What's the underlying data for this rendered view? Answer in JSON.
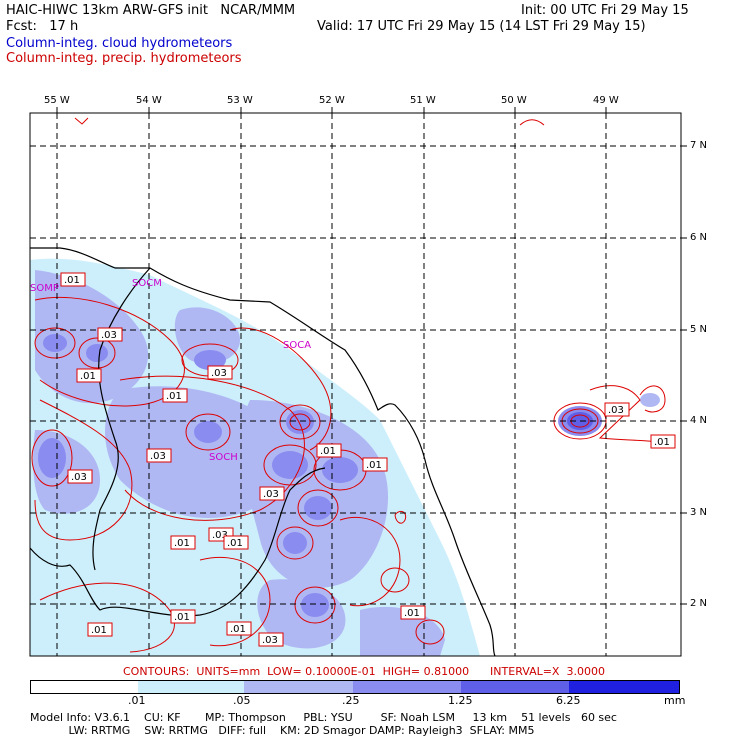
{
  "header": {
    "title": "HAIC-HIWC 13km ARW-GFS init   NCAR/MMM",
    "init": "Init: 00 UTC Fri 29 May 15",
    "fcst": "Fcst:   17 h",
    "valid": "Valid: 17 UTC Fri 29 May 15 (14 LST Fri 29 May 15)",
    "field_cloud": "Column-integ. cloud hydrometeors",
    "field_precip": "Column-integ. precip. hydrometeors"
  },
  "map": {
    "lon_labels": [
      "55 W",
      "54 W",
      "53 W",
      "52 W",
      "51 W",
      "50 W",
      "49 W"
    ],
    "lat_labels": [
      "7 N",
      "6 N",
      "5 N",
      "4 N",
      "3 N",
      "2 N"
    ],
    "stations": [
      "SOMP",
      "SOCM",
      "SOCA",
      "SOCH"
    ],
    "contour_labels": [
      ".01",
      ".03",
      ".03",
      ".01",
      ".03",
      ".01",
      ".03",
      ".01",
      ".03",
      ".01",
      ".01",
      ".03",
      ".01",
      ".03",
      ".01",
      ".01",
      ".01",
      ".01",
      ".01",
      ".03",
      ".01",
      ".01",
      ".03"
    ]
  },
  "contour_info": "CONTOURS:  UNITS=mm  LOW= 0.10000E-01  HIGH= 0.81000      INTERVAL=X  3.0000",
  "colorbar": {
    "ticks": [
      ".01",
      ".05",
      ".25",
      "1.25",
      "6.25"
    ],
    "units": "mm",
    "colors": [
      "#ffffff",
      "#cdeffb",
      "#b0b8f4",
      "#8a8cf0",
      "#5f5fe8",
      "#2020e0"
    ]
  },
  "model_info": {
    "line1": "Model Info: V3.6.1    CU: KF       MP: Thompson     PBL: YSU        SF: Noah LSM     13 km    51 levels   60 sec",
    "line2": "           LW: RRTMG    SW: RRTMG   DIFF: full    KM: 2D Smagor DAMP: Rayleigh3  SFLAY: MM5"
  }
}
